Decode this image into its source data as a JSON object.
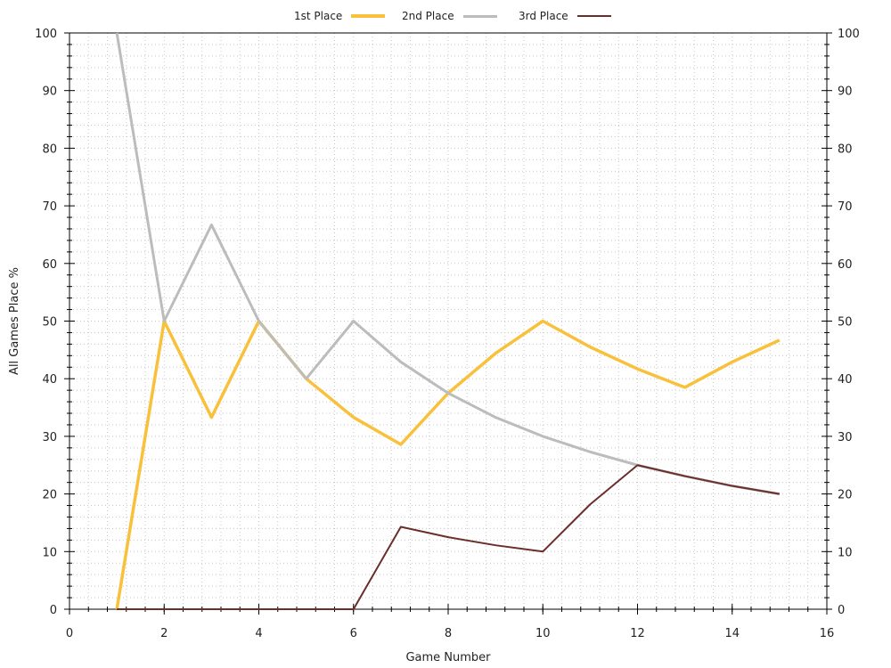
{
  "chart_data": {
    "type": "line",
    "xlabel": "Game Number",
    "ylabel": "All Games Place %",
    "xlim": [
      0,
      16
    ],
    "ylim": [
      0,
      100
    ],
    "x_ticks": [
      "0",
      "2",
      "4",
      "6",
      "8",
      "10",
      "12",
      "14",
      "16"
    ],
    "y_ticks": [
      "0",
      "10",
      "20",
      "30",
      "40",
      "50",
      "60",
      "70",
      "80",
      "90",
      "100"
    ],
    "grid": true,
    "legend_position": "top-center",
    "series": [
      {
        "name": "1st Place",
        "color": "#f9c13b",
        "x": [
          1,
          2,
          3,
          4,
          5,
          6,
          7,
          8,
          9,
          10,
          11,
          12,
          13,
          14,
          15
        ],
        "y": [
          0,
          50,
          33.3,
          50,
          40,
          33.3,
          28.6,
          37.5,
          44.4,
          50,
          45.5,
          41.7,
          38.5,
          42.9,
          46.7
        ]
      },
      {
        "name": "2nd Place",
        "color": "#bcbcbc",
        "x": [
          1,
          2,
          3,
          4,
          5,
          6,
          7,
          8,
          9,
          10,
          11,
          12,
          13,
          14,
          15
        ],
        "y": [
          100,
          50,
          66.7,
          50,
          40,
          50,
          42.9,
          37.5,
          33.3,
          30,
          27.3,
          25,
          23.1,
          21.4,
          20
        ]
      },
      {
        "name": "3rd Place",
        "color": "#6b2e2a",
        "x": [
          1,
          2,
          3,
          4,
          5,
          6,
          7,
          8,
          9,
          10,
          11,
          12,
          13,
          14,
          15
        ],
        "y": [
          0,
          0,
          0,
          0,
          0,
          0,
          14.3,
          12.5,
          11.1,
          10,
          18.2,
          25,
          23.1,
          21.4,
          20
        ]
      }
    ]
  }
}
